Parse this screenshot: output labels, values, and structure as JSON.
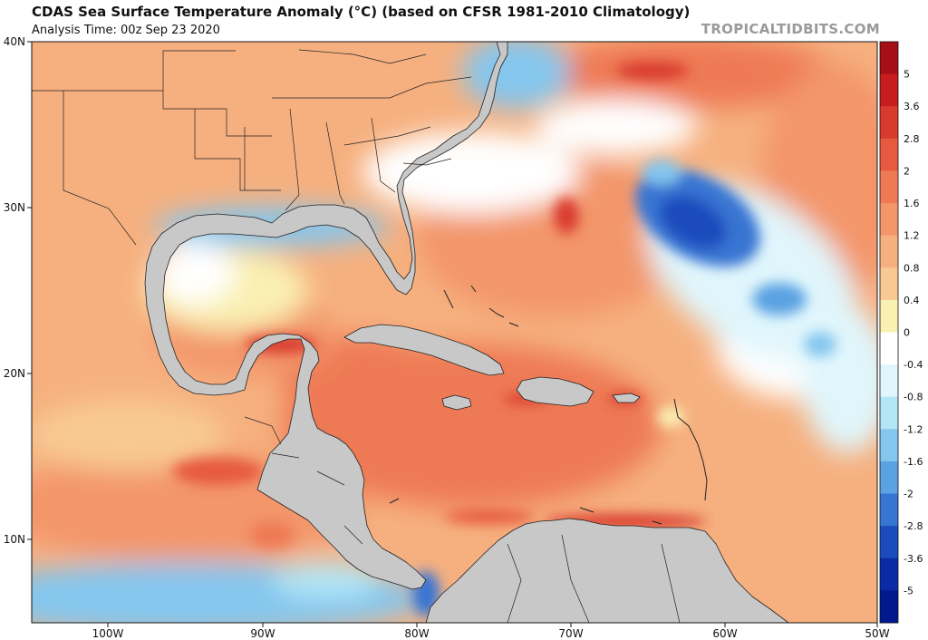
{
  "header": {
    "title": "CDAS Sea Surface Temperature Anomaly (°C) (based on CFSR 1981-2010 Climatology)",
    "analysis_time": "Analysis Time: 00z Sep 23 2020",
    "watermark": "TROPICALTIDBITS.COM"
  },
  "map": {
    "lat_labels": [
      "40N",
      "30N",
      "20N",
      "10N"
    ],
    "lon_labels": [
      "100W",
      "90W",
      "80W",
      "70W",
      "60W",
      "50W"
    ],
    "land_color": "#c8c8c8",
    "border_color": "#222222"
  },
  "colorbar": {
    "labels": [
      "5",
      "3.6",
      "2.8",
      "2",
      "1.6",
      "1.2",
      "0.8",
      "0.4",
      "0",
      "-0.4",
      "-0.8",
      "-1.2",
      "-1.6",
      "-2",
      "-2.8",
      "-3.6",
      "-5"
    ],
    "colors": [
      "#a50f15",
      "#c81d1d",
      "#d93a2e",
      "#e75a3f",
      "#ee7a55",
      "#f3966a",
      "#f6b07f",
      "#f8c993",
      "#faf0b2",
      "#ffffff",
      "#e0f6fc",
      "#b2e6f7",
      "#84c6ee",
      "#5aa2e2",
      "#3775d2",
      "#1b4bbd",
      "#0b2aa6",
      "#001a8e"
    ]
  }
}
